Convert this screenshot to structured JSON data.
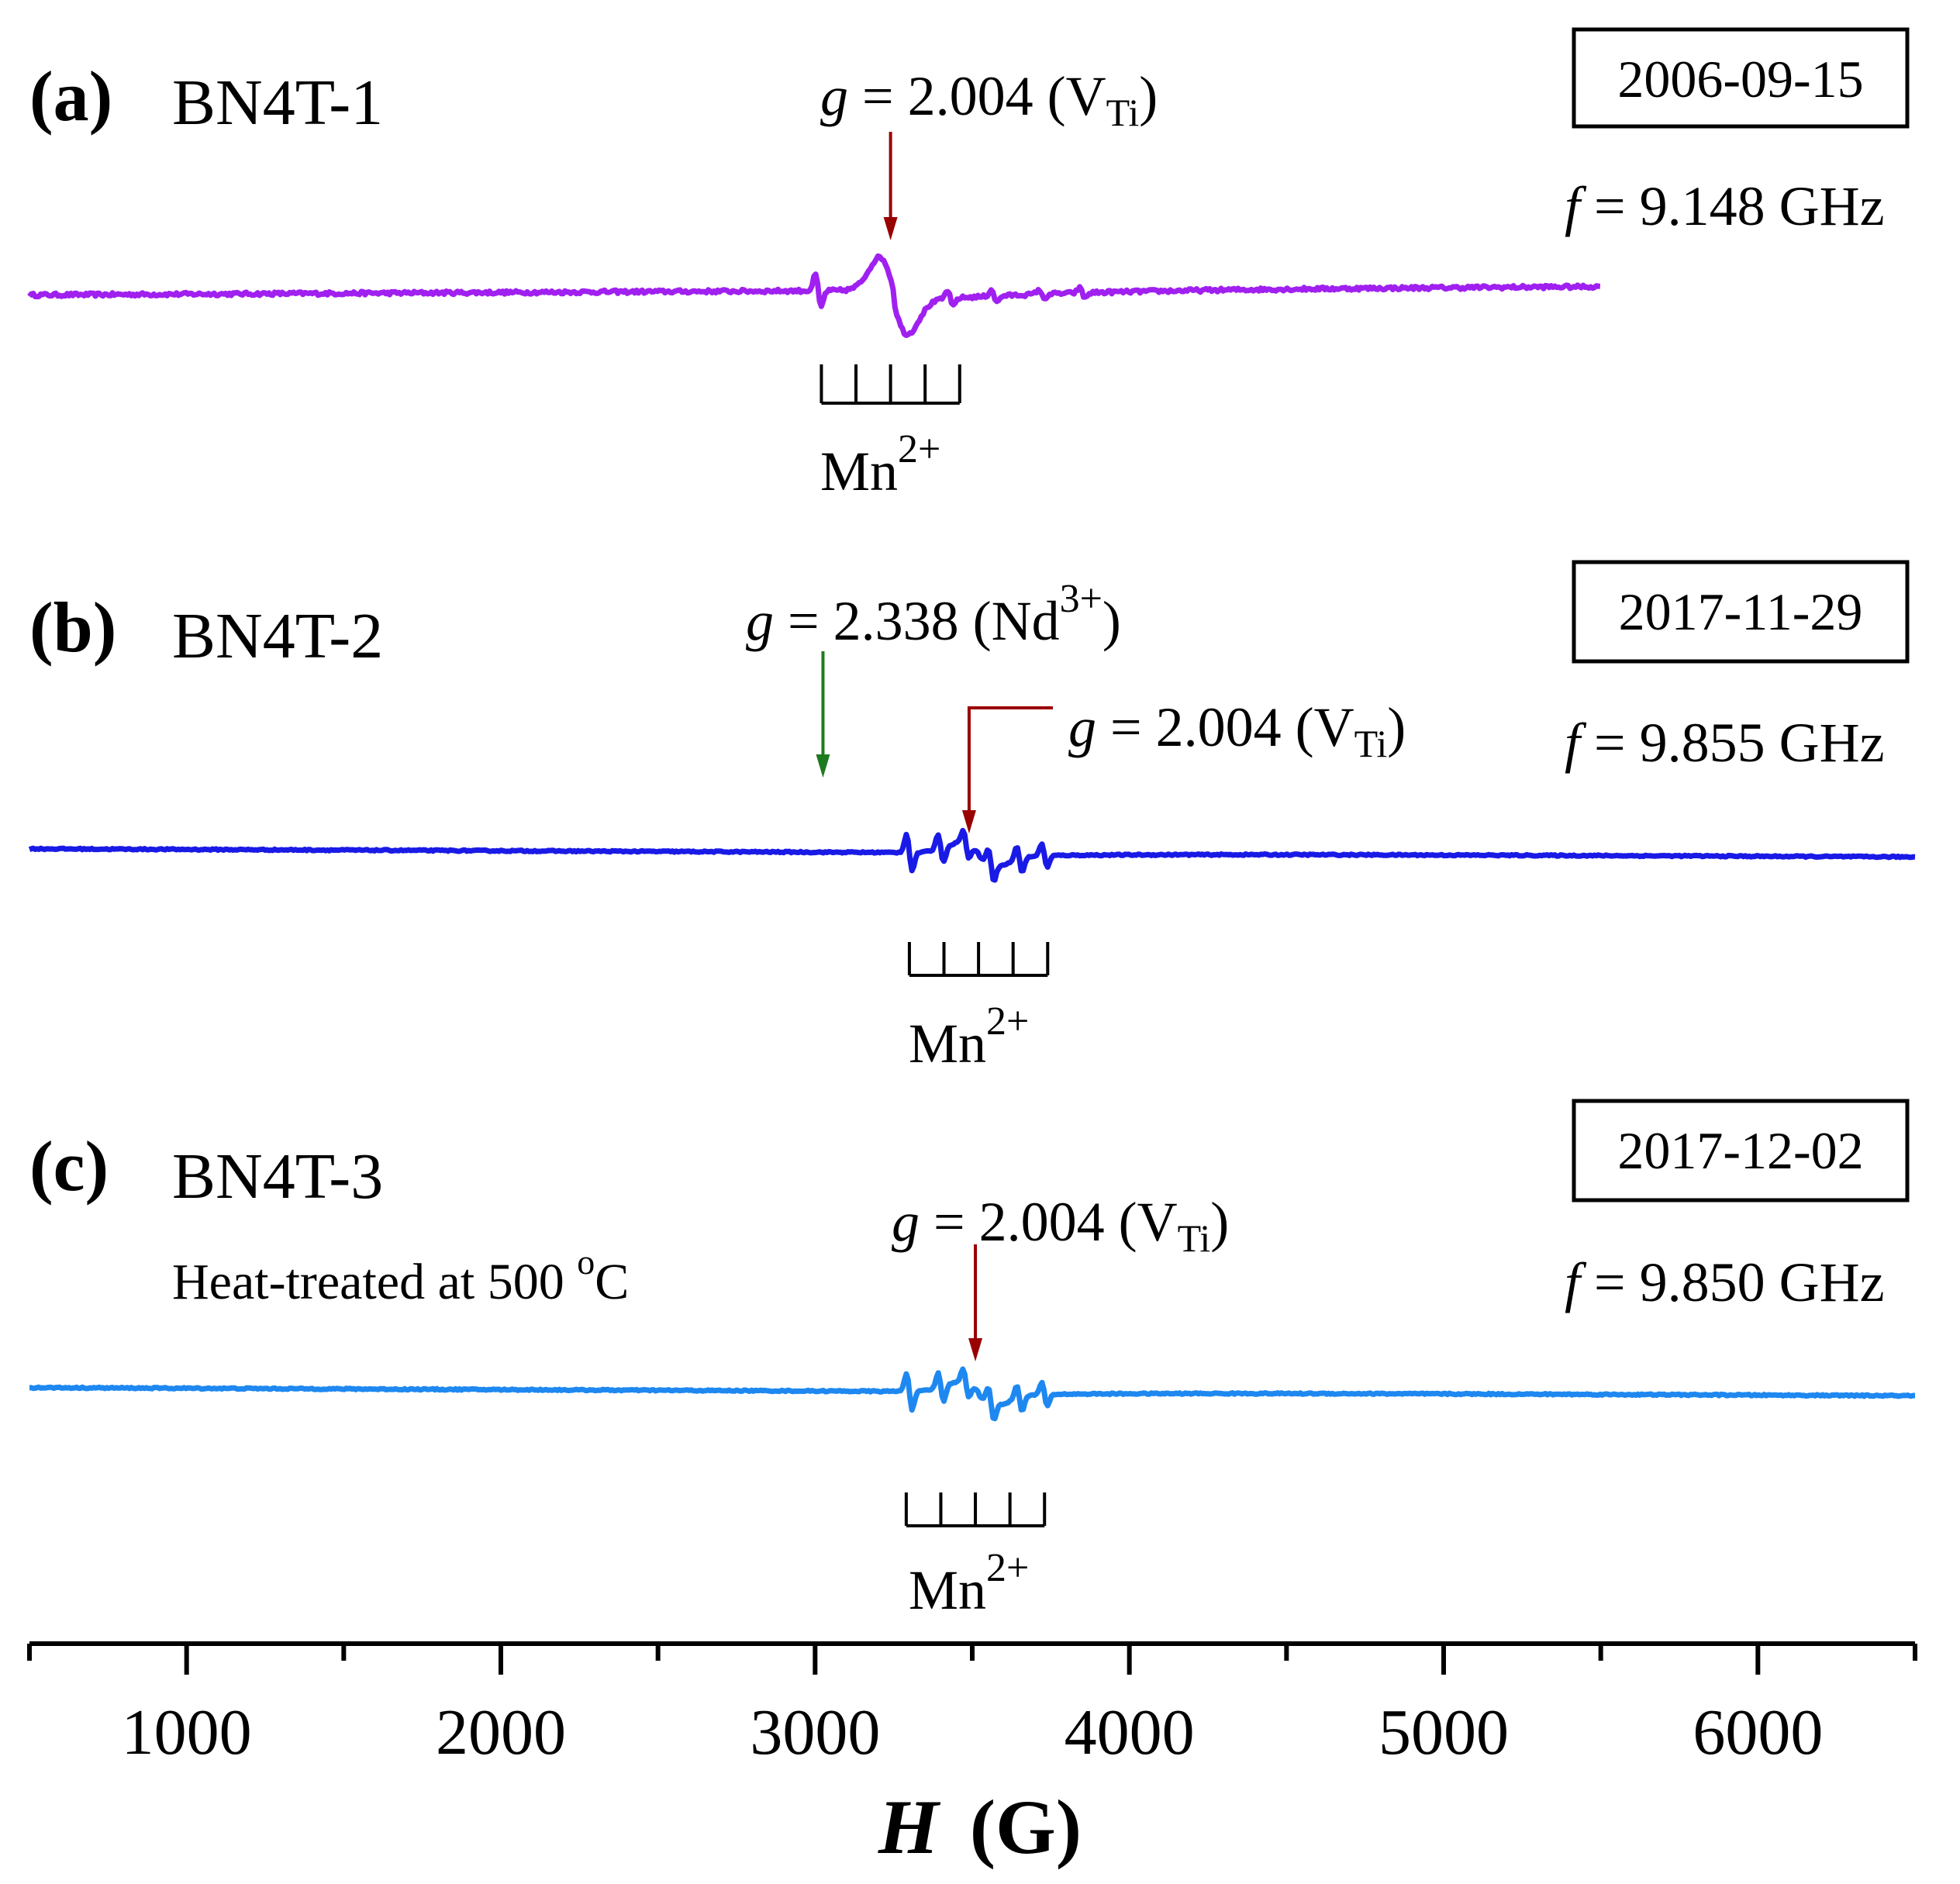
{
  "chart_data": {
    "type": "line",
    "title": "",
    "xlabel": {
      "symbol": "H",
      "unit": "(G)"
    },
    "ylabel": "",
    "xlim": [
      500,
      6500
    ],
    "x_ticks": [
      1000,
      2000,
      3000,
      4000,
      5000,
      6000
    ],
    "x_tick_labels": [
      "1000",
      "2000",
      "3000",
      "4000",
      "5000",
      "6000"
    ],
    "minor_tick_step": 500,
    "grid": false,
    "panels": [
      {
        "id": "a",
        "label": "(a)",
        "sample": "BN4T-1",
        "date": "2006-09-15",
        "frequency": {
          "prefix": "f",
          "value": " = 9.148 GHz"
        },
        "color": "#a020f0",
        "treatment": "",
        "x_range": [
          500,
          5500
        ],
        "baseline": 0,
        "slope": 0.1,
        "noise": 0.1,
        "features": [
          {
            "type": "signal",
            "center": 3250,
            "width": 45,
            "amplitude": 2.0
          },
          {
            "type": "spike",
            "center": 3010,
            "amplitude": 1.0
          },
          {
            "type": "spike",
            "center": 3430,
            "amplitude": 0.5
          },
          {
            "type": "spike",
            "center": 3570,
            "amplitude": 0.4
          },
          {
            "type": "spike",
            "center": 3720,
            "amplitude": 0.3
          },
          {
            "type": "spike",
            "center": 3850,
            "amplitude": 0.3
          }
        ],
        "mn_hyperfine": {
          "label": "Mn",
          "sup": "2+",
          "lines_G": [
            3020,
            3130,
            3240,
            3350,
            3460
          ]
        },
        "annotations": [
          {
            "prefix": "g",
            "text": " = 2.004 (V",
            "sub": "Ti",
            "close": ")",
            "sup": "",
            "arrow_color": "#990000",
            "arrow_field_G": 3240,
            "leader": false
          }
        ]
      },
      {
        "id": "b",
        "label": "(b)",
        "sample": "BN4T-2",
        "date": "2017-11-29",
        "frequency": {
          "prefix": "f",
          "value": " = 9.855 GHz"
        },
        "color": "#1a1ae6",
        "treatment": "",
        "x_range": [
          500,
          6500
        ],
        "baseline": 0,
        "slope": -0.08,
        "noise": 0.04,
        "features": [
          {
            "type": "signal",
            "center": 3520,
            "width": 60,
            "amplitude": 0.6
          },
          {
            "type": "spike",
            "center": 3300,
            "amplitude": 1.1
          },
          {
            "type": "spike",
            "center": 3400,
            "amplitude": 0.9
          },
          {
            "type": "spike",
            "center": 3480,
            "amplitude": 0.8
          },
          {
            "type": "spike",
            "center": 3560,
            "amplitude": 0.9
          },
          {
            "type": "spike",
            "center": 3650,
            "amplitude": 0.8
          },
          {
            "type": "spike",
            "center": 3730,
            "amplitude": 0.7
          }
        ],
        "mn_hyperfine": {
          "label": "Mn",
          "sup": "2+",
          "lines_G": [
            3300,
            3410,
            3520,
            3630,
            3740
          ]
        },
        "annotations": [
          {
            "prefix": "g",
            "text": " = 2.338 (Nd",
            "sub": "",
            "close": ")",
            "sup": "3+",
            "arrow_color": "#1f7a1f",
            "arrow_field_G": 3025,
            "leader": false
          },
          {
            "prefix": "g",
            "text": " = 2.004 (V",
            "sub": "Ti",
            "close": ")",
            "sup": "",
            "arrow_color": "#990000",
            "arrow_field_G": 3490,
            "leader": true
          }
        ]
      },
      {
        "id": "c",
        "label": "(c)",
        "sample": "BN4T-3",
        "date": "2017-12-02",
        "frequency": {
          "prefix": "f",
          "value": " = 9.850 GHz"
        },
        "color": "#1e88f0",
        "treatment": {
          "text": "Heat-treated at 500 ",
          "sup": "o",
          "unit": "C"
        },
        "x_range": [
          500,
          6500
        ],
        "baseline": 0,
        "slope": -0.08,
        "noise": 0.04,
        "features": [
          {
            "type": "signal",
            "center": 3520,
            "width": 60,
            "amplitude": 0.6
          },
          {
            "type": "spike",
            "center": 3300,
            "amplitude": 1.1
          },
          {
            "type": "spike",
            "center": 3400,
            "amplitude": 0.9
          },
          {
            "type": "spike",
            "center": 3480,
            "amplitude": 0.8
          },
          {
            "type": "spike",
            "center": 3560,
            "amplitude": 0.9
          },
          {
            "type": "spike",
            "center": 3650,
            "amplitude": 0.8
          },
          {
            "type": "spike",
            "center": 3730,
            "amplitude": 0.7
          }
        ],
        "mn_hyperfine": {
          "label": "Mn",
          "sup": "2+",
          "lines_G": [
            3290,
            3400,
            3510,
            3620,
            3730
          ]
        },
        "annotations": [
          {
            "prefix": "g",
            "text": " = 2.004 (V",
            "sub": "Ti",
            "close": ")",
            "sup": "",
            "arrow_color": "#990000",
            "arrow_field_G": 3510,
            "leader": false
          }
        ]
      }
    ]
  }
}
